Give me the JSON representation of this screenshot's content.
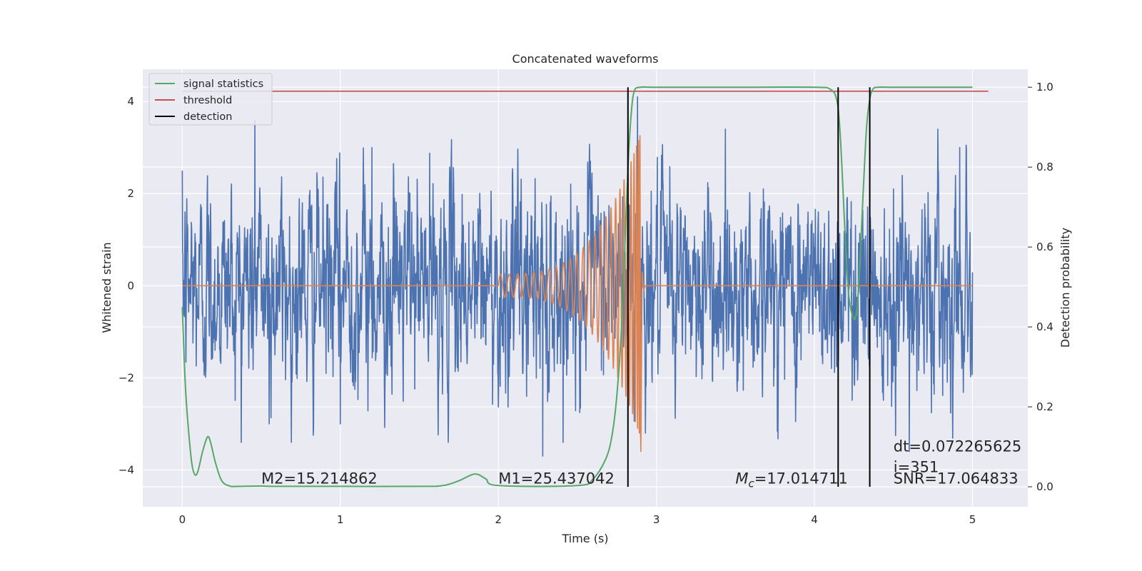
{
  "chart_data": {
    "type": "line",
    "title": "Concatenated waveforms",
    "xlabel": "Time (s)",
    "ylabel": "Whitened strain",
    "y2label": "Detection probability",
    "xlim": [
      -0.25,
      5.35
    ],
    "ylim": [
      -4.8,
      4.7
    ],
    "y2lim": [
      -0.05,
      1.045
    ],
    "x_ticks": [
      0,
      1,
      2,
      3,
      4,
      5
    ],
    "x_tick_labels": [
      "0",
      "1",
      "2",
      "3",
      "4",
      "5"
    ],
    "y_ticks": [
      -4,
      -2,
      0,
      2,
      4
    ],
    "y_tick_labels": [
      "−4",
      "−2",
      "0",
      "2",
      "4"
    ],
    "y2_ticks": [
      0.0,
      0.2,
      0.4,
      0.6,
      0.8,
      1.0
    ],
    "y2_tick_labels": [
      "0.0",
      "0.2",
      "0.4",
      "0.6",
      "0.8",
      "1.0"
    ],
    "grid": true,
    "legend_position": "top-left",
    "colors": {
      "background": "#eaeaf2",
      "grid": "#ffffff",
      "strain": "#4c72b0",
      "template": "#dd8452",
      "signal_statistics": "#55a868",
      "threshold": "#c44e52",
      "detection": "#000000"
    },
    "legend": [
      {
        "label": "signal statistics",
        "color": "#55a868"
      },
      {
        "label": "threshold",
        "color": "#c44e52"
      },
      {
        "label": "detection",
        "color": "#000000"
      }
    ],
    "series": [
      {
        "kind": "noise",
        "axis": "left",
        "x_range": [
          0,
          5
        ],
        "amplitude_typical": 1.0,
        "peaks": [
          [
            0.46,
            3.6
          ],
          [
            0.55,
            -3.0
          ],
          [
            1.0,
            -3.0
          ],
          [
            1.2,
            3.0
          ],
          [
            2.28,
            -3.7
          ],
          [
            2.82,
            3.1
          ],
          [
            2.88,
            4.1
          ],
          [
            4.5,
            2.1
          ],
          [
            4.6,
            -3.6
          ],
          [
            4.92,
            3.0
          ]
        ]
      },
      {
        "kind": "chirp",
        "axis": "left",
        "start": 2.0,
        "merger": 2.9,
        "start_amplitude": 0.25,
        "peak_amplitude": 3.3,
        "min_value": -3.6
      },
      {
        "name": "signal statistics",
        "axis": "right",
        "x": [
          0.0,
          0.02,
          0.04,
          0.06,
          0.08,
          0.1,
          0.13,
          0.16,
          0.18,
          0.21,
          0.25,
          0.3,
          0.35,
          0.5,
          0.6,
          1.0,
          1.5,
          1.65,
          1.75,
          1.85,
          1.92,
          2.0,
          2.5,
          2.6,
          2.68,
          2.72,
          2.75,
          2.78,
          2.8,
          2.82,
          2.84,
          2.86,
          2.9,
          3.0,
          3.5,
          4.0,
          4.1,
          4.14,
          4.16,
          4.18,
          4.2,
          4.22,
          4.25,
          4.27,
          4.29,
          4.31,
          4.33,
          4.35,
          4.37,
          4.4,
          4.5,
          5.0
        ],
        "y": [
          0.45,
          0.25,
          0.14,
          0.06,
          0.03,
          0.04,
          0.09,
          0.125,
          0.11,
          0.06,
          0.015,
          0.002,
          0.001,
          0.002,
          0.001,
          0.001,
          0.001,
          0.003,
          0.015,
          0.032,
          0.02,
          0.003,
          0.003,
          0.02,
          0.07,
          0.13,
          0.23,
          0.4,
          0.6,
          0.8,
          0.93,
          0.99,
          1.0,
          1.0,
          1.0,
          1.0,
          0.995,
          0.97,
          0.9,
          0.75,
          0.58,
          0.47,
          0.42,
          0.45,
          0.58,
          0.75,
          0.9,
          0.97,
          0.995,
          1.0,
          1.0,
          1.0
        ]
      },
      {
        "name": "threshold",
        "axis": "right",
        "x": [
          0.0,
          5.1
        ],
        "y": [
          0.99,
          0.99
        ]
      }
    ],
    "detections": [
      2.82,
      4.15,
      4.35
    ],
    "annotations": [
      {
        "text": "M2=15.214862",
        "x": 0.5,
        "y": -4.3,
        "italic_prefix": "",
        "subscript": ""
      },
      {
        "text": "M1=25.437042",
        "x": 2.0,
        "y": -4.3,
        "italic_prefix": "",
        "subscript": ""
      },
      {
        "text": "=17.014711",
        "x": 3.5,
        "y": -4.3,
        "italic_prefix": "M",
        "subscript": "c"
      },
      {
        "text": "dt=0.072265625",
        "x": 4.5,
        "y": -3.6,
        "italic_prefix": "",
        "subscript": ""
      },
      {
        "text": " i=351",
        "x": 4.5,
        "y": -4.05,
        "italic_prefix": "",
        "subscript": ""
      },
      {
        "text": "SNR=17.064833",
        "x": 4.5,
        "y": -4.3,
        "italic_prefix": "",
        "subscript": ""
      }
    ]
  }
}
